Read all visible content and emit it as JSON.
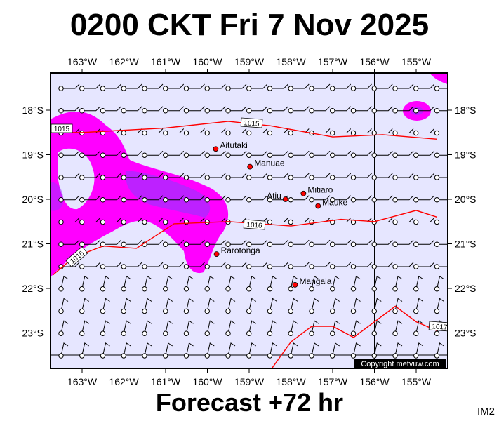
{
  "title": "0200 CKT Fri 7 Nov 2025",
  "footer": "Forecast +72 hr",
  "code": "IM2",
  "copyright": "Copyright metvuw.com",
  "lon_labels": [
    "163°W",
    "162°W",
    "161°W",
    "160°W",
    "159°W",
    "158°W",
    "157°W",
    "156°W",
    "155°W"
  ],
  "lat_labels": [
    "18°S",
    "19°S",
    "20°S",
    "21°S",
    "22°S",
    "23°S"
  ],
  "places": [
    {
      "name": "Aitutaki",
      "lon": -159.8,
      "lat": -18.87
    },
    {
      "name": "Manuae",
      "lon": -158.98,
      "lat": -19.27
    },
    {
      "name": "Atiu",
      "lon": -158.13,
      "lat": -20.0
    },
    {
      "name": "Mitiaro",
      "lon": -157.7,
      "lat": -19.87
    },
    {
      "name": "Mauke",
      "lon": -157.35,
      "lat": -20.15
    },
    {
      "name": "Rarotonga",
      "lon": -159.78,
      "lat": -21.23
    },
    {
      "name": "Mangaia",
      "lon": -157.9,
      "lat": -21.92
    }
  ],
  "isobars": [
    {
      "label": "1015",
      "points": [
        [
          -163.7,
          -18.5
        ],
        [
          -163,
          -18.5
        ],
        [
          -161,
          -18.4
        ],
        [
          -159.5,
          -18.25
        ],
        [
          -158.5,
          -18.35
        ],
        [
          -157,
          -18.6
        ],
        [
          -155.8,
          -18.55
        ],
        [
          -154.5,
          -18.65
        ]
      ]
    },
    {
      "label": "1016",
      "points": [
        [
          -163.7,
          -21.7
        ],
        [
          -163.2,
          -21.3
        ],
        [
          -162.5,
          -21.05
        ],
        [
          -161.7,
          -21.1
        ],
        [
          -160.8,
          -20.55
        ],
        [
          -159.5,
          -20.5
        ],
        [
          -158,
          -20.6
        ],
        [
          -156.8,
          -20.45
        ],
        [
          -156,
          -20.5
        ],
        [
          -155,
          -20.25
        ],
        [
          -154.5,
          -20.4
        ]
      ]
    },
    {
      "label": "1017",
      "points": [
        [
          -158.5,
          -23.85
        ],
        [
          -158,
          -23.2
        ],
        [
          -157.5,
          -22.85
        ],
        [
          -157,
          -22.85
        ],
        [
          -156.5,
          -23.1
        ],
        [
          -155.5,
          -22.4
        ],
        [
          -155,
          -22.75
        ],
        [
          -154.5,
          -22.95
        ]
      ]
    }
  ],
  "colors": {
    "sea": "#e6e6ff",
    "rain_light": "#ff00ff",
    "rain_heavy": "#9933ff",
    "isobar": "#ff0000",
    "place_marker": "#ff0000"
  }
}
